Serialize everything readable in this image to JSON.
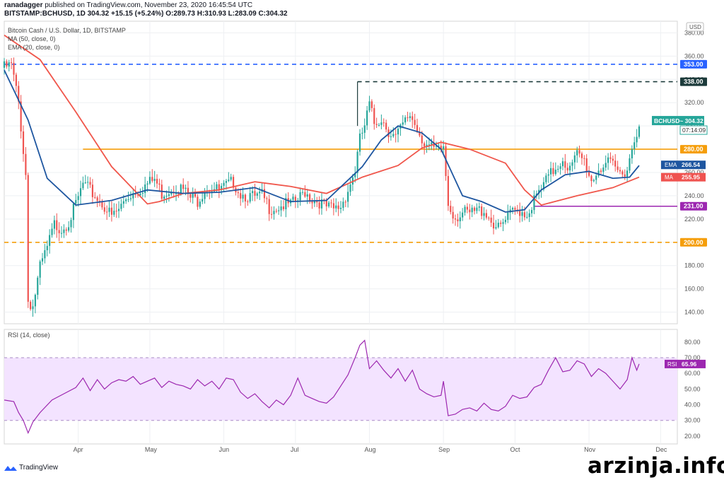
{
  "header": {
    "author": "ranadagger",
    "published_text": "published on TradingView.com, November 23, 2020 16:45:54 UTC",
    "symbol": "BITSTAMP:BCHUSD, 1D",
    "last": "304.32",
    "change": "+15.15 (+5.24%)",
    "ohlc": "O:289.73 H:310.93 L:283.09 C:304.32"
  },
  "legend": {
    "title": "Bitcoin Cash / U.S. Dollar, 1D, BITSTAMP",
    "ma": "MA (50, close, 0)",
    "ema": "EMA (20, close, 0)",
    "rsi": "RSI (14, close)"
  },
  "currency": "USD",
  "branding": {
    "logo_text": "TradingView",
    "watermark": "arzinja.info"
  },
  "colors": {
    "up": "#26a69a",
    "down": "#ef5350",
    "ma": "#f0564b",
    "ema": "#1e56a0",
    "level_orange": "#f59e0b",
    "level_purple": "#9c27b0",
    "level_blue": "#2962ff",
    "level_dark": "#1c3b3b",
    "rsi_line": "#9c27b0",
    "rsi_band": "#f3e3ff"
  },
  "chart_data": [
    {
      "type": "candlestick",
      "title": "Bitcoin Cash / U.S. Dollar, 1D, BITSTAMP",
      "ylim": [
        130,
        390
      ],
      "y_ticks": [
        140,
        160,
        180,
        200,
        220,
        240,
        260,
        280,
        300,
        320,
        340,
        360,
        380
      ],
      "y_tick_labels": [
        "140.00",
        "160.00",
        "180.00",
        "200.00",
        "220.00",
        "240.00",
        "260.00",
        "280.00",
        "300.00",
        "320.00",
        "340.00",
        "360.00",
        "380.00"
      ],
      "x_labels": [
        "Apr",
        "May",
        "Jun",
        "Jul",
        "Aug",
        "Sep",
        "Oct",
        "Nov",
        "Dec"
      ],
      "x_label_days": [
        31,
        61,
        92,
        122,
        153,
        184,
        214,
        245,
        275
      ],
      "x_range_days": [
        0,
        282
      ],
      "close_path": [
        [
          0,
          350
        ],
        [
          3,
          352
        ],
        [
          6,
          320
        ],
        [
          9,
          258
        ],
        [
          10,
          150
        ],
        [
          12,
          145
        ],
        [
          15,
          178
        ],
        [
          18,
          195
        ],
        [
          21,
          215
        ],
        [
          24,
          212
        ],
        [
          27,
          218
        ],
        [
          30,
          232
        ],
        [
          33,
          250
        ],
        [
          36,
          244
        ],
        [
          39,
          238
        ],
        [
          42,
          231
        ],
        [
          45,
          222
        ],
        [
          48,
          228
        ],
        [
          51,
          238
        ],
        [
          54,
          243
        ],
        [
          57,
          246
        ],
        [
          60,
          250
        ],
        [
          63,
          254
        ],
        [
          66,
          242
        ],
        [
          69,
          245
        ],
        [
          72,
          248
        ],
        [
          75,
          245
        ],
        [
          78,
          238
        ],
        [
          81,
          236
        ],
        [
          84,
          246
        ],
        [
          87,
          247
        ],
        [
          90,
          244
        ],
        [
          93,
          248
        ],
        [
          96,
          252
        ],
        [
          99,
          242
        ],
        [
          102,
          240
        ],
        [
          105,
          238
        ],
        [
          108,
          240
        ],
        [
          111,
          230
        ],
        [
          114,
          230
        ],
        [
          117,
          232
        ],
        [
          120,
          232
        ],
        [
          123,
          236
        ],
        [
          126,
          244
        ],
        [
          129,
          237
        ],
        [
          132,
          235
        ],
        [
          135,
          230
        ],
        [
          138,
          228
        ],
        [
          141,
          231
        ],
        [
          144,
          245
        ],
        [
          147,
          262
        ],
        [
          149,
          288
        ],
        [
          151,
          300
        ],
        [
          153,
          318
        ],
        [
          155,
          302
        ],
        [
          158,
          307
        ],
        [
          161,
          296
        ],
        [
          164,
          290
        ],
        [
          167,
          300
        ],
        [
          170,
          310
        ],
        [
          173,
          298
        ],
        [
          176,
          286
        ],
        [
          179,
          280
        ],
        [
          182,
          278
        ],
        [
          184,
          282
        ],
        [
          186,
          233
        ],
        [
          189,
          222
        ],
        [
          192,
          225
        ],
        [
          195,
          224
        ],
        [
          198,
          227
        ],
        [
          201,
          228
        ],
        [
          204,
          219
        ],
        [
          207,
          211
        ],
        [
          210,
          218
        ],
        [
          213,
          226
        ],
        [
          216,
          228
        ],
        [
          219,
          224
        ],
        [
          222,
          236
        ],
        [
          225,
          245
        ],
        [
          228,
          256
        ],
        [
          231,
          264
        ],
        [
          234,
          272
        ],
        [
          237,
          262
        ],
        [
          240,
          275
        ],
        [
          243,
          270
        ],
        [
          246,
          253
        ],
        [
          249,
          263
        ],
        [
          252,
          268
        ],
        [
          255,
          265
        ],
        [
          258,
          259
        ],
        [
          261,
          264
        ],
        [
          264,
          289
        ],
        [
          266,
          304
        ]
      ],
      "series": [
        {
          "name": "MA",
          "last": 255.95,
          "points": [
            [
              0,
              378
            ],
            [
              15,
              357
            ],
            [
              30,
              312
            ],
            [
              45,
              265
            ],
            [
              60,
              233
            ],
            [
              65,
              235
            ],
            [
              75,
              242
            ],
            [
              90,
              245
            ],
            [
              105,
              252
            ],
            [
              120,
              248
            ],
            [
              135,
              242
            ],
            [
              150,
              256
            ],
            [
              165,
              266
            ],
            [
              175,
              281
            ],
            [
              183,
              286
            ],
            [
              195,
              280
            ],
            [
              210,
              268
            ],
            [
              218,
              245
            ],
            [
              225,
              232
            ],
            [
              240,
              240
            ],
            [
              255,
              247
            ],
            [
              266,
              256
            ]
          ]
        },
        {
          "name": "EMA",
          "last": 266.54,
          "points": [
            [
              0,
              348
            ],
            [
              10,
              305
            ],
            [
              18,
              255
            ],
            [
              30,
              232
            ],
            [
              45,
              236
            ],
            [
              60,
              245
            ],
            [
              75,
              242
            ],
            [
              90,
              243
            ],
            [
              105,
              247
            ],
            [
              120,
              235
            ],
            [
              135,
              236
            ],
            [
              150,
              265
            ],
            [
              158,
              288
            ],
            [
              165,
              300
            ],
            [
              175,
              294
            ],
            [
              183,
              280
            ],
            [
              192,
              240
            ],
            [
              200,
              235
            ],
            [
              210,
              226
            ],
            [
              218,
              228
            ],
            [
              225,
              245
            ],
            [
              235,
              258
            ],
            [
              245,
              261
            ],
            [
              255,
              255
            ],
            [
              262,
              256
            ],
            [
              266,
              266
            ]
          ]
        }
      ],
      "horizontal_levels": [
        {
          "value": 353,
          "label": "353.00",
          "style": "dashed",
          "color": "#2962ff"
        },
        {
          "value": 338,
          "label": "338.00",
          "style": "dashed",
          "color": "#1c3b3b"
        },
        {
          "value": 280,
          "label": "280.00",
          "style": "solid",
          "color": "#f59e0b"
        },
        {
          "value": 231,
          "label": "231.00",
          "style": "solid",
          "color": "#9c27b0"
        },
        {
          "value": 200,
          "label": "200.00",
          "style": "dashed",
          "color": "#f59e0b"
        }
      ],
      "price_tags": [
        {
          "name": "BCHUSD",
          "value": 304.32,
          "text": "304.32",
          "countdown": "07:14:09"
        },
        {
          "name": "EMA",
          "value": 266.54,
          "text": "266.54"
        },
        {
          "name": "MA",
          "value": 255.95,
          "text": "255.95"
        }
      ]
    },
    {
      "type": "line",
      "title": "RSI (14, close)",
      "ylim": [
        15,
        88
      ],
      "y_ticks": [
        20,
        30,
        40,
        50,
        60,
        70,
        80
      ],
      "y_tick_labels": [
        "20.00",
        "30.00",
        "40.00",
        "50.00",
        "60.00",
        "70.00",
        "80.00"
      ],
      "band": [
        30,
        70
      ],
      "last": 65.96,
      "last_label": "65.96",
      "points": [
        [
          0,
          43
        ],
        [
          4,
          42
        ],
        [
          6,
          35
        ],
        [
          8,
          30
        ],
        [
          10,
          22
        ],
        [
          12,
          29
        ],
        [
          15,
          35
        ],
        [
          20,
          43
        ],
        [
          25,
          47
        ],
        [
          30,
          51
        ],
        [
          33,
          57
        ],
        [
          36,
          49
        ],
        [
          39,
          56
        ],
        [
          42,
          50
        ],
        [
          45,
          54
        ],
        [
          48,
          56
        ],
        [
          51,
          55
        ],
        [
          54,
          58
        ],
        [
          57,
          53
        ],
        [
          60,
          55
        ],
        [
          63,
          57
        ],
        [
          66,
          51
        ],
        [
          69,
          55
        ],
        [
          72,
          53
        ],
        [
          75,
          52
        ],
        [
          78,
          50
        ],
        [
          81,
          56
        ],
        [
          84,
          52
        ],
        [
          87,
          55
        ],
        [
          90,
          50
        ],
        [
          93,
          57
        ],
        [
          96,
          56
        ],
        [
          99,
          48
        ],
        [
          102,
          44
        ],
        [
          105,
          47
        ],
        [
          108,
          42
        ],
        [
          111,
          38
        ],
        [
          114,
          43
        ],
        [
          117,
          40
        ],
        [
          120,
          46
        ],
        [
          123,
          57
        ],
        [
          126,
          46
        ],
        [
          129,
          44
        ],
        [
          132,
          42
        ],
        [
          135,
          41
        ],
        [
          138,
          45
        ],
        [
          141,
          52
        ],
        [
          144,
          59
        ],
        [
          147,
          70
        ],
        [
          149,
          78
        ],
        [
          151,
          81
        ],
        [
          153,
          63
        ],
        [
          156,
          68
        ],
        [
          159,
          62
        ],
        [
          162,
          57
        ],
        [
          165,
          63
        ],
        [
          168,
          55
        ],
        [
          171,
          62
        ],
        [
          174,
          50
        ],
        [
          177,
          47
        ],
        [
          180,
          45
        ],
        [
          183,
          46
        ],
        [
          184,
          55
        ],
        [
          186,
          33
        ],
        [
          189,
          34
        ],
        [
          192,
          37
        ],
        [
          195,
          38
        ],
        [
          198,
          36
        ],
        [
          201,
          41
        ],
        [
          204,
          37
        ],
        [
          207,
          36
        ],
        [
          210,
          39
        ],
        [
          213,
          46
        ],
        [
          216,
          44
        ],
        [
          219,
          45
        ],
        [
          222,
          51
        ],
        [
          225,
          53
        ],
        [
          228,
          62
        ],
        [
          231,
          70
        ],
        [
          234,
          61
        ],
        [
          237,
          62
        ],
        [
          240,
          68
        ],
        [
          243,
          66
        ],
        [
          246,
          58
        ],
        [
          249,
          63
        ],
        [
          252,
          60
        ],
        [
          255,
          55
        ],
        [
          258,
          50
        ],
        [
          261,
          56
        ],
        [
          263,
          70
        ],
        [
          265,
          62
        ],
        [
          266,
          66
        ]
      ]
    }
  ]
}
